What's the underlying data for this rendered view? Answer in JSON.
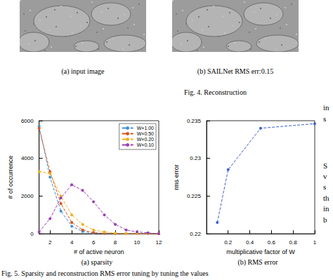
{
  "images": [
    {
      "caption": "(a) input image"
    },
    {
      "caption": "(b) SAILNet RMS err:0.15"
    }
  ],
  "fig4_caption": "Fig. 4.  Reconstruction",
  "chart_data": [
    {
      "type": "line",
      "title": "(a) sparsity",
      "x_label": "# of active neuron",
      "y_label": "# of occurrence",
      "x": [
        1,
        2,
        3,
        4,
        5,
        6,
        7,
        8,
        9,
        10,
        11,
        12
      ],
      "series": [
        {
          "name": "W×1.00",
          "color": "#3f8fd2",
          "marker": "circle",
          "line_style": "dashed",
          "values": [
            5700,
            3000,
            1200,
            400,
            120,
            30,
            10,
            0,
            0,
            0,
            0,
            0
          ]
        },
        {
          "name": "W×0.50",
          "color": "#d95319",
          "marker": "circle",
          "line_style": "dashed",
          "values": [
            5600,
            3300,
            1600,
            600,
            200,
            60,
            20,
            5,
            0,
            0,
            0,
            0
          ]
        },
        {
          "name": "W×0.20",
          "color": "#edb120",
          "marker": "circle",
          "line_style": "dashed",
          "values": [
            3300,
            3200,
            2000,
            1000,
            500,
            200,
            100,
            30,
            0,
            0,
            0,
            0
          ]
        },
        {
          "name": "W×0.10",
          "color": "#9b3fb0",
          "marker": "circle",
          "line_style": "dashed",
          "values": [
            100,
            800,
            1900,
            2600,
            2300,
            1700,
            1000,
            500,
            200,
            100,
            50,
            0
          ]
        }
      ],
      "xlim": [
        1,
        12
      ],
      "xticks": [
        2,
        4,
        6,
        8,
        10,
        12
      ],
      "ylim": [
        0,
        6000
      ],
      "yticks": [
        0,
        2000,
        4000,
        6000
      ],
      "legend": "upper right",
      "grid": false
    },
    {
      "type": "line",
      "title": "(b) RMS error",
      "x_label": "multiplicative factor of W",
      "y_label": "rms error",
      "x": [
        0.1,
        0.2,
        0.5,
        1.0
      ],
      "values": [
        0.2215,
        0.2285,
        0.234,
        0.2346
      ],
      "color": "#3a5fcd",
      "marker": "circle",
      "line_style": "dashed",
      "xlim": [
        0,
        1
      ],
      "xticks": [
        0.2,
        0.4,
        0.6,
        0.8,
        1
      ],
      "ylim": [
        0.22,
        0.235
      ],
      "yticks": [
        0.22,
        0.225,
        0.23,
        0.235
      ],
      "grid": false
    }
  ],
  "fig5_caption": "Fig. 5.  Sparsity and reconstruction RMS error tuning by tuning the values",
  "margin_fragments": [
    "in",
    "s",
    "S",
    "v",
    "s",
    "th",
    "in",
    "b"
  ]
}
